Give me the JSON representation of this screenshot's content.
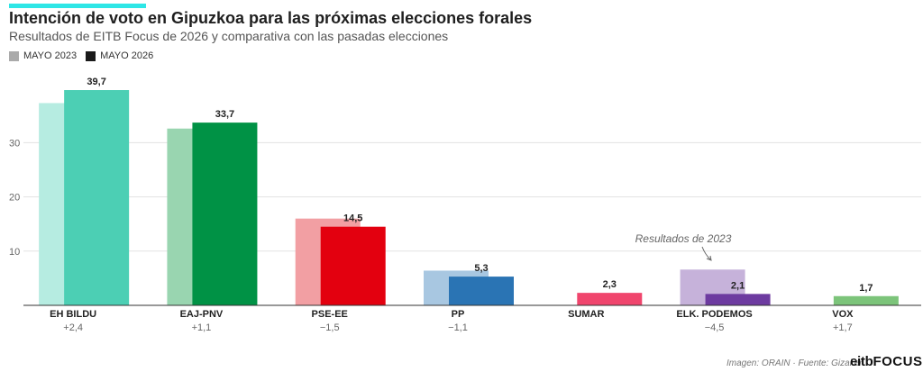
{
  "title": "Intención de voto en Gipuzkoa para las próximas elecciones forales",
  "subtitle": "Resultados de EITB Focus de 2026 y comparativa con las pasadas elecciones",
  "legend": {
    "items": [
      {
        "label": "MAYO 2023",
        "color": "#aaaaaa"
      },
      {
        "label": "MAYO 2026",
        "color": "#1a1a1a"
      }
    ]
  },
  "accent_color": "#2ee6e6",
  "annotation": "Resultados de 2023",
  "source": "Imagen: ORAIN · Fuente: Gizaker",
  "logo": {
    "part1": "eitb",
    "part2": "FOCUS"
  },
  "chart_data": {
    "type": "bar",
    "categories": [
      "EH BILDU",
      "EAJ-PNV",
      "PSE-EE",
      "PP",
      "SUMAR",
      "ELK. PODEMOS",
      "VOX"
    ],
    "series": [
      {
        "name": "MAYO 2023",
        "values": [
          37.3,
          32.6,
          16.0,
          6.4,
          null,
          6.6,
          null
        ]
      },
      {
        "name": "MAYO 2026",
        "values": [
          39.7,
          33.7,
          14.5,
          5.3,
          2.3,
          2.1,
          1.7
        ]
      }
    ],
    "value_labels": [
      "39,7",
      "33,7",
      "14,5",
      "5,3",
      "2,3",
      "2,1",
      "1,7"
    ],
    "changes": [
      "+2,4",
      "+1,1",
      "−1,5",
      "−1,1",
      "",
      "−4,5",
      "+1,7"
    ],
    "colors_2026": [
      "#4ccfb4",
      "#009245",
      "#e3000f",
      "#2a74b4",
      "#f0456d",
      "#6d3ba0",
      "#7cc47a"
    ],
    "colors_2023": [
      "#b6ece1",
      "#99d5b0",
      "#f29fa3",
      "#a8c7e1",
      "",
      "#c6b2da",
      ""
    ],
    "y_ticks": [
      10,
      20,
      30
    ],
    "ylim": [
      0,
      40
    ],
    "grid": true
  }
}
